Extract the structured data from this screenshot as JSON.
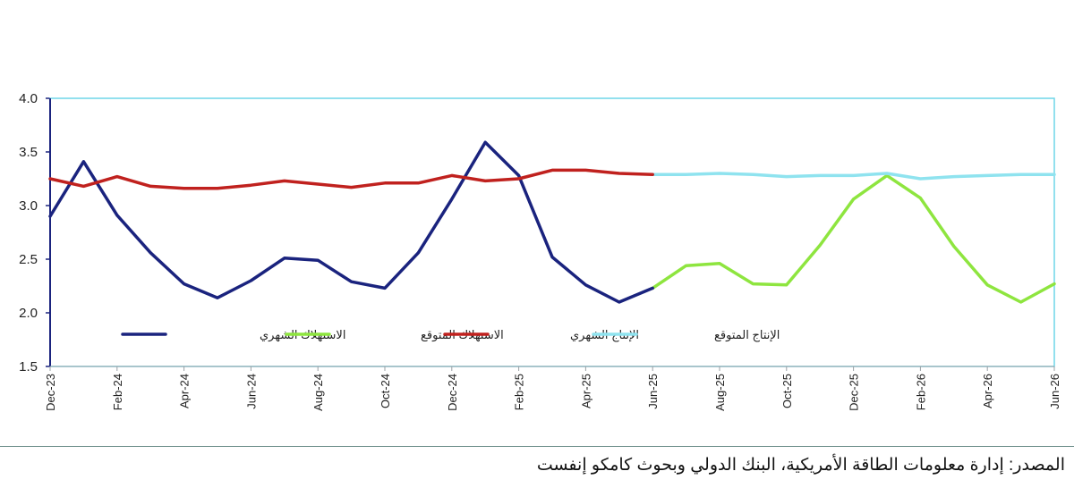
{
  "chart_data": {
    "type": "line",
    "x": [
      "Dec-23",
      "Jan-24",
      "Feb-24",
      "Mar-24",
      "Apr-24",
      "May-24",
      "Jun-24",
      "Jul-24",
      "Aug-24",
      "Sep-24",
      "Oct-24",
      "Nov-24",
      "Dec-24",
      "Jan-25",
      "Feb-25",
      "Mar-25",
      "Apr-25",
      "May-25",
      "Jun-25",
      "Jul-25",
      "Aug-25",
      "Sep-25",
      "Oct-25",
      "Nov-25",
      "Dec-25",
      "Jan-26",
      "Feb-26",
      "Mar-26",
      "Apr-26",
      "May-26",
      "Jun-26"
    ],
    "x_tick_labels": [
      "Dec-23",
      "Feb-24",
      "Apr-24",
      "Jun-24",
      "Aug-24",
      "Oct-24",
      "Dec-24",
      "Feb-25",
      "Apr-25",
      "Jun-25",
      "Aug-25",
      "Oct-25",
      "Dec-25",
      "Feb-26",
      "Apr-26",
      "Jun-26"
    ],
    "y_ticks": [
      "1.5",
      "2.0",
      "2.5",
      "3.0",
      "3.5",
      "4.0"
    ],
    "ylim": [
      1.5,
      4.0
    ],
    "grid": false,
    "legend_position": "bottom-inside",
    "series": [
      {
        "name": "الاستهلاك الشهري",
        "color": "#1a237e",
        "values": [
          2.9,
          3.41,
          2.91,
          2.56,
          2.27,
          2.14,
          2.3,
          2.51,
          2.49,
          2.29,
          2.23,
          2.56,
          3.06,
          3.59,
          3.28,
          2.52,
          2.26,
          2.1,
          2.23,
          null,
          null,
          null,
          null,
          null,
          null,
          null,
          null,
          null,
          null,
          null,
          null
        ]
      },
      {
        "name": "الاستهلاك المتوقع",
        "color": "#8ee53f",
        "values": [
          null,
          null,
          null,
          null,
          null,
          null,
          null,
          null,
          null,
          null,
          null,
          null,
          null,
          null,
          null,
          null,
          null,
          null,
          2.23,
          2.44,
          2.46,
          2.27,
          2.26,
          2.63,
          3.06,
          3.28,
          3.07,
          2.62,
          2.26,
          2.1,
          2.27
        ]
      },
      {
        "name": "الإنتاج الشهري",
        "color": "#c0211e",
        "values": [
          3.25,
          3.18,
          3.27,
          3.18,
          3.16,
          3.16,
          3.19,
          3.23,
          3.2,
          3.17,
          3.21,
          3.21,
          3.28,
          3.23,
          3.25,
          3.33,
          3.33,
          3.3,
          3.29,
          null,
          null,
          null,
          null,
          null,
          null,
          null,
          null,
          null,
          null,
          null,
          null
        ]
      },
      {
        "name": "الإنتاج المتوقع",
        "color": "#8fe3ef",
        "values": [
          null,
          null,
          null,
          null,
          null,
          null,
          null,
          null,
          null,
          null,
          null,
          null,
          null,
          null,
          null,
          null,
          null,
          null,
          3.29,
          3.29,
          3.3,
          3.29,
          3.27,
          3.28,
          3.28,
          3.3,
          3.25,
          3.27,
          3.28,
          3.29,
          3.29
        ]
      }
    ]
  },
  "colors": {
    "axis": "#1a237e",
    "plot_border": "#6fd6e8"
  },
  "footer": {
    "source": "المصدر: إدارة معلومات الطاقة الأمريكية، البنك الدولي وبحوث كامكو إنفست"
  }
}
